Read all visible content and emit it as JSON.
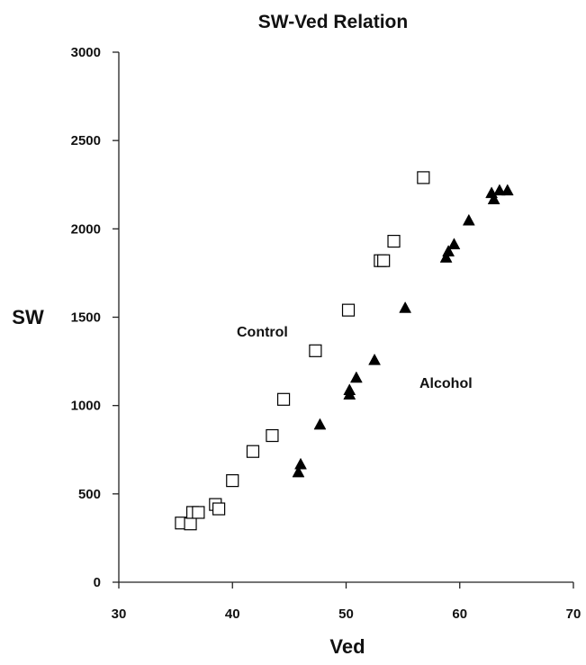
{
  "chart_data": {
    "type": "scatter",
    "title": "SW-Ved Relation",
    "xlabel": "Ved",
    "ylabel": "SW",
    "xlim": [
      30,
      70
    ],
    "ylim": [
      0,
      3000
    ],
    "xticks": [
      30,
      40,
      50,
      60,
      70
    ],
    "yticks": [
      0,
      500,
      1000,
      1500,
      2000,
      2500,
      3000
    ],
    "grid": false,
    "series": [
      {
        "name": "Control",
        "marker": "open-square",
        "color": "#000000",
        "points": [
          [
            35.5,
            335
          ],
          [
            36.3,
            330
          ],
          [
            36.5,
            395
          ],
          [
            37.0,
            395
          ],
          [
            38.5,
            440
          ],
          [
            38.8,
            415
          ],
          [
            40.0,
            575
          ],
          [
            41.8,
            740
          ],
          [
            43.5,
            830
          ],
          [
            44.5,
            1035
          ],
          [
            47.3,
            1310
          ],
          [
            50.2,
            1540
          ],
          [
            53.0,
            1820
          ],
          [
            53.3,
            1820
          ],
          [
            54.2,
            1930
          ],
          [
            56.8,
            2290
          ]
        ]
      },
      {
        "name": "Alcohol",
        "marker": "filled-triangle",
        "color": "#000000",
        "points": [
          [
            45.8,
            620
          ],
          [
            46.0,
            665
          ],
          [
            47.7,
            890
          ],
          [
            50.3,
            1060
          ],
          [
            50.3,
            1085
          ],
          [
            50.9,
            1155
          ],
          [
            52.5,
            1255
          ],
          [
            55.2,
            1550
          ],
          [
            58.8,
            1835
          ],
          [
            59.0,
            1870
          ],
          [
            59.5,
            1910
          ],
          [
            60.8,
            2045
          ],
          [
            62.8,
            2200
          ],
          [
            63.0,
            2165
          ],
          [
            63.5,
            2215
          ],
          [
            64.2,
            2215
          ]
        ]
      }
    ]
  }
}
